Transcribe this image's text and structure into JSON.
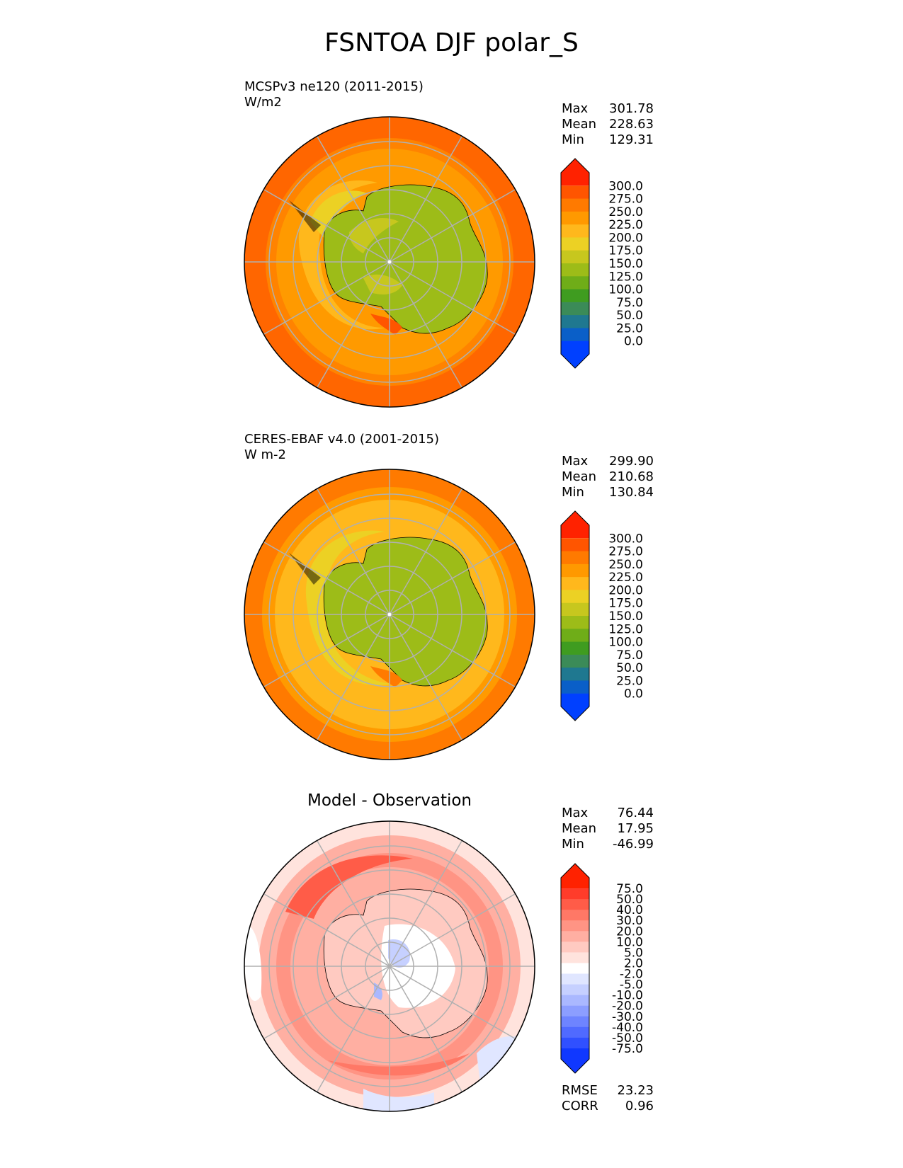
{
  "figure": {
    "title": "FSNTOA DJF polar_S"
  },
  "chart_data": [
    {
      "type": "heatmap",
      "title": "MCSPv3 ne120 (2011-2015)",
      "units": "W/m2",
      "stats": {
        "max_label": "Max",
        "max": "301.78",
        "mean_label": "Mean",
        "mean": "228.63",
        "min_label": "Min",
        "min": "129.31"
      },
      "colorbar": {
        "ticks": [
          "300.0",
          "275.0",
          "250.0",
          "225.0",
          "200.0",
          "175.0",
          "150.0",
          "125.0",
          "100.0",
          "75.0",
          "50.0",
          "25.0",
          "0.0"
        ],
        "colors": [
          "#ff2200",
          "#ff5500",
          "#ff7a00",
          "#ff9900",
          "#ffb81c",
          "#ecd124",
          "#c7c71e",
          "#9dbc18",
          "#6fad18",
          "#3f9c20",
          "#3b8b58",
          "#1f7890",
          "#0a5fc8",
          "#0040ff"
        ]
      }
    },
    {
      "type": "heatmap",
      "title": "CERES-EBAF v4.0 (2001-2015)",
      "units": "W m-2",
      "stats": {
        "max_label": "Max",
        "max": "299.90",
        "mean_label": "Mean",
        "mean": "210.68",
        "min_label": "Min",
        "min": "130.84"
      },
      "colorbar": {
        "ticks": [
          "300.0",
          "275.0",
          "250.0",
          "225.0",
          "200.0",
          "175.0",
          "150.0",
          "125.0",
          "100.0",
          "75.0",
          "50.0",
          "25.0",
          "0.0"
        ],
        "colors": [
          "#ff2200",
          "#ff5500",
          "#ff7a00",
          "#ff9900",
          "#ffb81c",
          "#ecd124",
          "#c7c71e",
          "#9dbc18",
          "#6fad18",
          "#3f9c20",
          "#3b8b58",
          "#1f7890",
          "#0a5fc8",
          "#0040ff"
        ]
      }
    },
    {
      "type": "heatmap",
      "title": "Model - Observation",
      "stats": {
        "max_label": "Max",
        "max": "76.44",
        "mean_label": "Mean",
        "mean": "17.95",
        "min_label": "Min",
        "min": "-46.99"
      },
      "colorbar": {
        "ticks": [
          "75.0",
          "50.0",
          "40.0",
          "30.0",
          "20.0",
          "10.0",
          "5.0",
          "2.0",
          "-2.0",
          "-5.0",
          "-10.0",
          "-20.0",
          "-30.0",
          "-40.0",
          "-50.0",
          "-75.0"
        ],
        "colors": [
          "#ff2200",
          "#ff3c2a",
          "#ff5c48",
          "#ff7866",
          "#ff9484",
          "#ffafa2",
          "#ffcac1",
          "#ffe3dd",
          "#ffffff",
          "#e0e6ff",
          "#c6d0ff",
          "#aab8ff",
          "#8c9eff",
          "#6e84ff",
          "#506aff",
          "#3050ff",
          "#1038ff"
        ]
      },
      "metrics": {
        "rmse_label": "RMSE",
        "rmse": "23.23",
        "corr_label": "CORR",
        "corr": "0.96"
      }
    }
  ]
}
